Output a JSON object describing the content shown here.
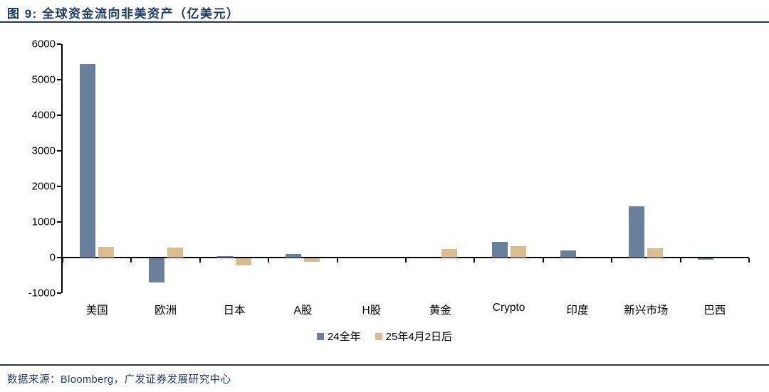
{
  "header": {
    "title": "图 9:  全球资金流向非美资产（亿美元）"
  },
  "footer": {
    "source": "数据来源：Bloomberg，广发证券发展研究中心"
  },
  "colors": {
    "title_navy": "#1c3a5e",
    "series1_blue": "#68809b",
    "series2_tan": "#d9bd8c",
    "axis_black": "#000000"
  },
  "chart_data": {
    "type": "bar",
    "title": "图 9: 全球资金流向非美资产（亿美元）",
    "xlabel": "",
    "ylabel": "",
    "unit": "亿美元",
    "categories": [
      "美国",
      "欧洲",
      "日本",
      "A股",
      "H股",
      "黄金",
      "Crypto",
      "印度",
      "新兴市场",
      "巴西"
    ],
    "series": [
      {
        "name": "24全年",
        "color": "#68809b",
        "values": [
          5450,
          -680,
          50,
          110,
          0,
          0,
          450,
          200,
          1450,
          -40
        ]
      },
      {
        "name": "25年4月2日后",
        "color": "#d9bd8c",
        "values": [
          310,
          280,
          -200,
          -100,
          0,
          250,
          320,
          0,
          260,
          0
        ]
      }
    ],
    "ylim": [
      -1000,
      6000
    ],
    "yticks": [
      6000,
      5000,
      4000,
      3000,
      2000,
      1000,
      0,
      -1000
    ],
    "grid": false,
    "legend_position": "bottom"
  }
}
